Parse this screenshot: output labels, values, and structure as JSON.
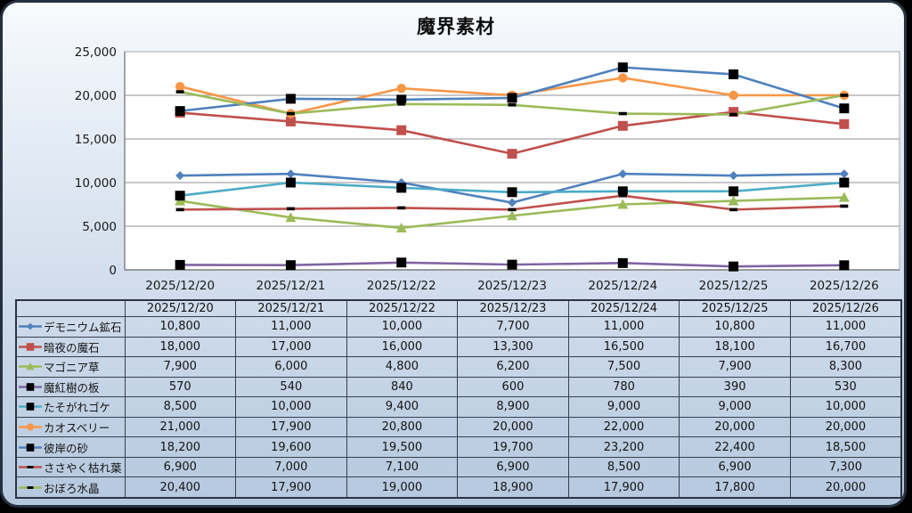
{
  "page": {
    "title": "魔界素材"
  },
  "chart_data": {
    "type": "line",
    "title": "魔界素材",
    "categories": [
      "2025/12/20",
      "2025/12/21",
      "2025/12/22",
      "2025/12/23",
      "2025/12/24",
      "2025/12/25",
      "2025/12/26"
    ],
    "series": [
      {
        "name": "デモニウム鉱石",
        "color": "#4F81BD",
        "marker": "diamond",
        "marker_color": "#4F81BD",
        "values": [
          10800,
          11000,
          10000,
          7700,
          11000,
          10800,
          11000
        ]
      },
      {
        "name": "暗夜の魔石",
        "color": "#C0504D",
        "marker": "square",
        "marker_color": "#C0504D",
        "values": [
          18000,
          17000,
          16000,
          13300,
          16500,
          18100,
          16700
        ]
      },
      {
        "name": "マゴニア草",
        "color": "#9BBB59",
        "marker": "triangle",
        "marker_color": "#9BBB59",
        "values": [
          7900,
          6000,
          4800,
          6200,
          7500,
          7900,
          8300
        ]
      },
      {
        "name": "魔紅樹の板",
        "color": "#8064A2",
        "marker": "square",
        "marker_color": "#000000",
        "values": [
          570,
          540,
          840,
          600,
          780,
          390,
          530
        ]
      },
      {
        "name": "たそがれゴケ",
        "color": "#4BACC6",
        "marker": "square",
        "marker_color": "#000000",
        "values": [
          8500,
          10000,
          9400,
          8900,
          9000,
          9000,
          10000
        ]
      },
      {
        "name": "カオスベリー",
        "color": "#F79646",
        "marker": "circle",
        "marker_color": "#F79646",
        "values": [
          21000,
          17900,
          20800,
          20000,
          22000,
          20000,
          20000
        ]
      },
      {
        "name": "彼岸の砂",
        "color": "#4F81BD",
        "marker": "square",
        "marker_color": "#000000",
        "values": [
          18200,
          19600,
          19500,
          19700,
          23200,
          22400,
          18500
        ]
      },
      {
        "name": "ささやく枯れ葉",
        "color": "#C0504D",
        "marker": "dash",
        "marker_color": "#000000",
        "values": [
          6900,
          7000,
          7100,
          6900,
          8500,
          6900,
          7300
        ]
      },
      {
        "name": "おぼろ水晶",
        "color": "#9BBB59",
        "marker": "dash",
        "marker_color": "#000000",
        "values": [
          20400,
          17900,
          19000,
          18900,
          17900,
          17800,
          20000
        ]
      }
    ],
    "ylim": [
      0,
      25000
    ],
    "y_ticks": [
      0,
      5000,
      10000,
      15000,
      20000,
      25000
    ],
    "grid": true,
    "legend_position": "table-left-column",
    "style_colors": {
      "plot_background": "#ffffff",
      "gridline": "#a6a6a6",
      "axis_line": "#7f7f7f",
      "card_border": "#263140",
      "table_border": "#37414f",
      "text": "#1a1a1a"
    }
  }
}
